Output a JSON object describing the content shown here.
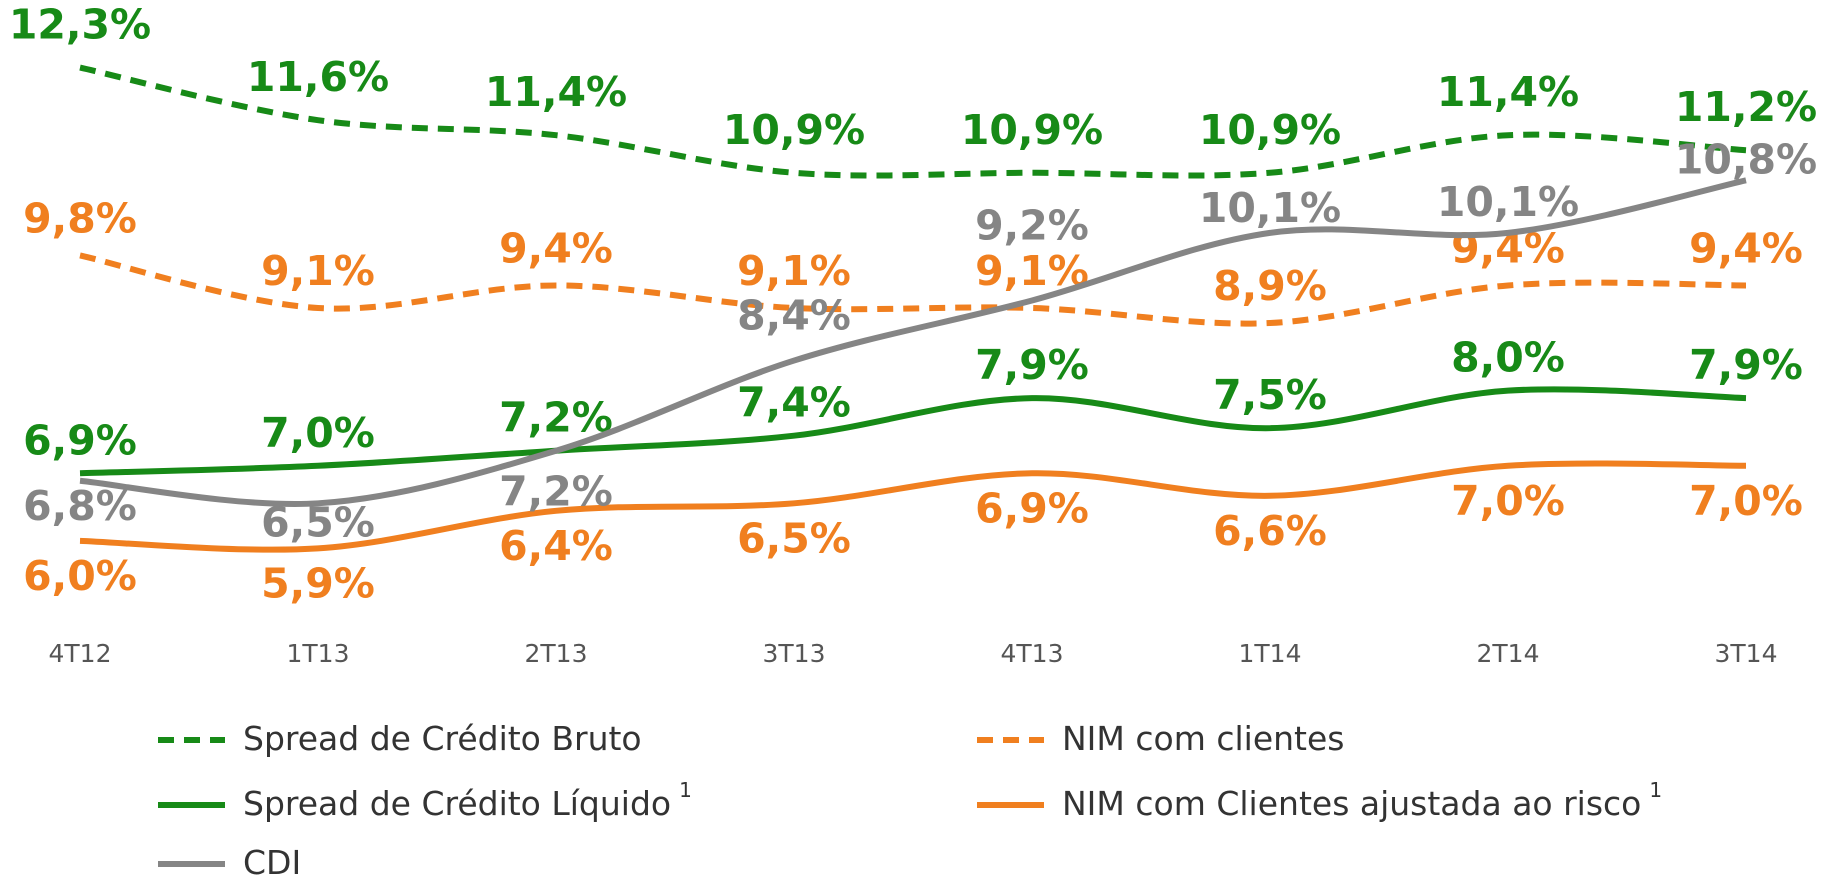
{
  "chart_data": {
    "type": "line",
    "categories": [
      "4T12",
      "1T13",
      "2T13",
      "3T13",
      "4T13",
      "1T14",
      "2T14",
      "3T14"
    ],
    "ylim": [
      5,
      13
    ],
    "series": [
      {
        "name": "Spread de Crédito Bruto",
        "color": "#178a17",
        "dash": true,
        "values": [
          12.3,
          11.6,
          11.4,
          10.9,
          10.9,
          10.9,
          11.4,
          11.2
        ],
        "value_labels": [
          "12,3%",
          "11,6%",
          "11,4%",
          "10,9%",
          "10,9%",
          "10,9%",
          "11,4%",
          "11,2%"
        ]
      },
      {
        "name": "NIM com clientes",
        "color": "#f07f1f",
        "dash": true,
        "values": [
          9.8,
          9.1,
          9.4,
          9.1,
          9.1,
          8.9,
          9.4,
          9.4
        ],
        "value_labels": [
          "9,8%",
          "9,1%",
          "9,4%",
          "9,1%",
          "9,1%",
          "8,9%",
          "9,4%",
          "9,4%"
        ]
      },
      {
        "name": "Spread de Crédito Líquido",
        "note": "1",
        "color": "#178a17",
        "dash": false,
        "values": [
          6.9,
          7.0,
          7.2,
          7.4,
          7.9,
          7.5,
          8.0,
          7.9
        ],
        "value_labels": [
          "6,9%",
          "7,0%",
          "7,2%",
          "7,4%",
          "7,9%",
          "7,5%",
          "8,0%",
          "7,9%"
        ]
      },
      {
        "name": "NIM com Clientes ajustada ao risco",
        "note": "1",
        "color": "#f07f1f",
        "dash": false,
        "values": [
          6.0,
          5.9,
          6.4,
          6.5,
          6.9,
          6.6,
          7.0,
          7.0
        ],
        "value_labels": [
          "6,0%",
          "5,9%",
          "6,4%",
          "6,5%",
          "6,9%",
          "6,6%",
          "7,0%",
          "7,0%"
        ]
      },
      {
        "name": "CDI",
        "color": "#858585",
        "dash": false,
        "values": [
          6.8,
          6.5,
          7.2,
          8.4,
          9.2,
          10.1,
          10.1,
          10.8
        ],
        "value_labels": [
          "6,8%",
          "6,5%",
          "7,2%",
          "8,4%",
          "9,2%",
          "10,1%",
          "10,1%",
          "10,8%"
        ]
      }
    ]
  }
}
